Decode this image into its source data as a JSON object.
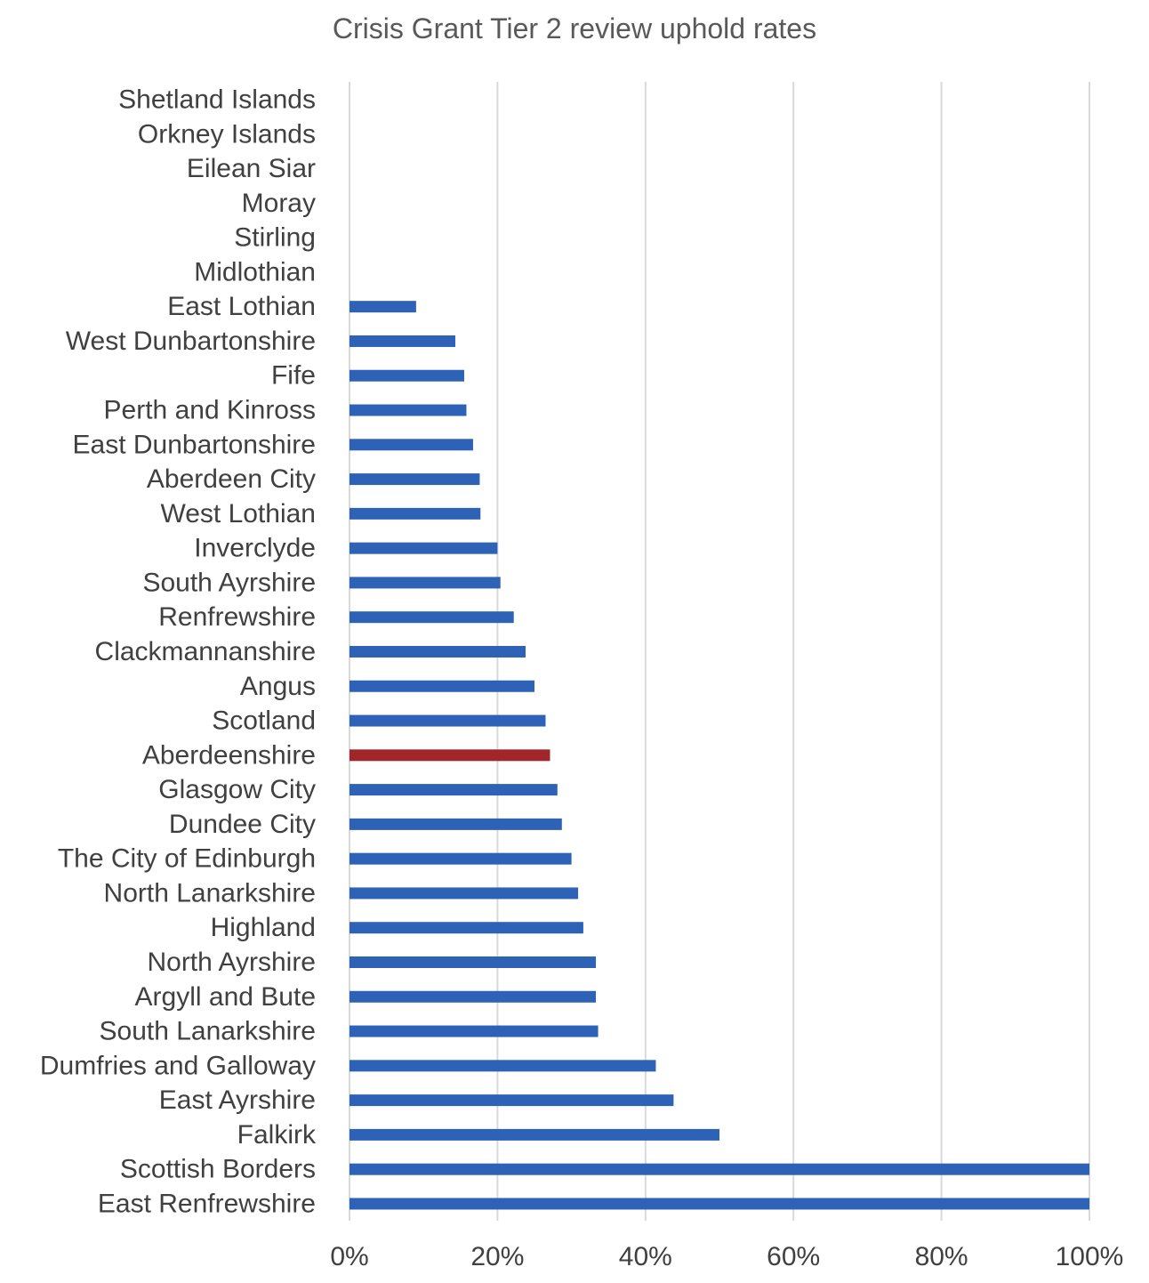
{
  "chart_data": {
    "type": "bar",
    "orientation": "horizontal",
    "title": "Crisis Grant Tier 2 review uphold rates",
    "xlabel": "",
    "ylabel": "",
    "xlim": [
      0,
      1
    ],
    "x_ticks": [
      0,
      0.2,
      0.4,
      0.6,
      0.8,
      1.0
    ],
    "x_tick_labels": [
      "0%",
      "20%",
      "40%",
      "60%",
      "80%",
      "100%"
    ],
    "grid": "vertical",
    "legend": "none",
    "categories": [
      "Shetland Islands",
      "Orkney Islands",
      "Eilean Siar",
      "Moray",
      "Stirling",
      "Midlothian",
      "East Lothian",
      "West Dunbartonshire",
      "Fife",
      "Perth and Kinross",
      "East Dunbartonshire",
      "Aberdeen City",
      "West Lothian",
      "Inverclyde",
      "South Ayrshire",
      "Renfrewshire",
      "Clackmannanshire",
      "Angus",
      "Scotland",
      "Aberdeenshire",
      "Glasgow City",
      "Dundee City",
      "The City of Edinburgh",
      "North Lanarkshire",
      "Highland",
      "North Ayrshire",
      "Argyll and Bute",
      "South Lanarkshire",
      "Dumfries and Galloway",
      "East Ayrshire",
      "Falkirk",
      "Scottish Borders",
      "East Renfrewshire"
    ],
    "values": [
      0,
      0,
      0,
      0,
      0,
      0,
      0.09,
      0.143,
      0.155,
      0.158,
      0.167,
      0.176,
      0.177,
      0.2,
      0.204,
      0.222,
      0.238,
      0.25,
      0.265,
      0.271,
      0.281,
      0.287,
      0.3,
      0.309,
      0.316,
      0.333,
      0.333,
      0.336,
      0.414,
      0.438,
      0.5,
      1.0,
      1.0
    ],
    "bar_color": "#2E62B6",
    "highlight_category": "Aberdeenshire",
    "highlight_color": "#A0262A",
    "grid_color": "#D9D9D9"
  }
}
